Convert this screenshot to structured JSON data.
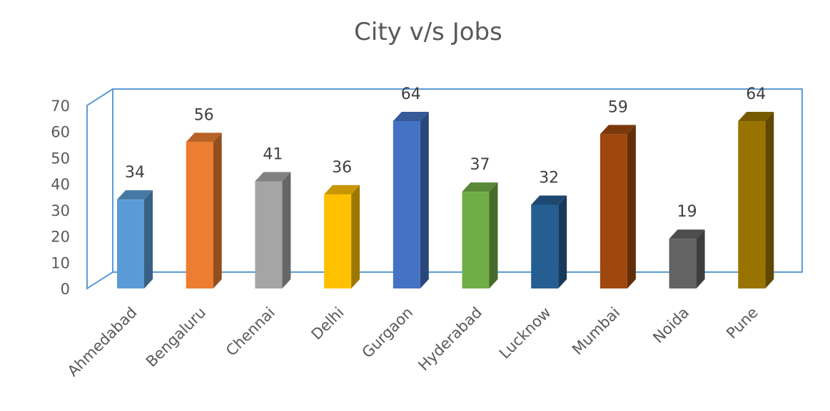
{
  "chart_data": {
    "type": "bar",
    "title": "City v/s Jobs",
    "xlabel": "",
    "ylabel": "",
    "categories": [
      "Ahmedabad",
      "Bengaluru",
      "Chennai",
      "Delhi",
      "Gurgaon",
      "Hyderabad",
      "Lucknow",
      "Mumbai",
      "Noida",
      "Pune"
    ],
    "values": [
      34,
      56,
      41,
      36,
      64,
      37,
      32,
      59,
      19,
      64
    ],
    "colors": [
      "#5b9bd5",
      "#ed7d31",
      "#a5a5a5",
      "#ffc000",
      "#4472c4",
      "#70ad47",
      "#255e91",
      "#9e480e",
      "#636363",
      "#997300"
    ],
    "ylim": [
      0,
      70
    ],
    "yticks": [
      0,
      10,
      20,
      30,
      40,
      50,
      60,
      70
    ],
    "grid": false,
    "legend": "none",
    "style": "3d-column",
    "data_labels": true
  }
}
